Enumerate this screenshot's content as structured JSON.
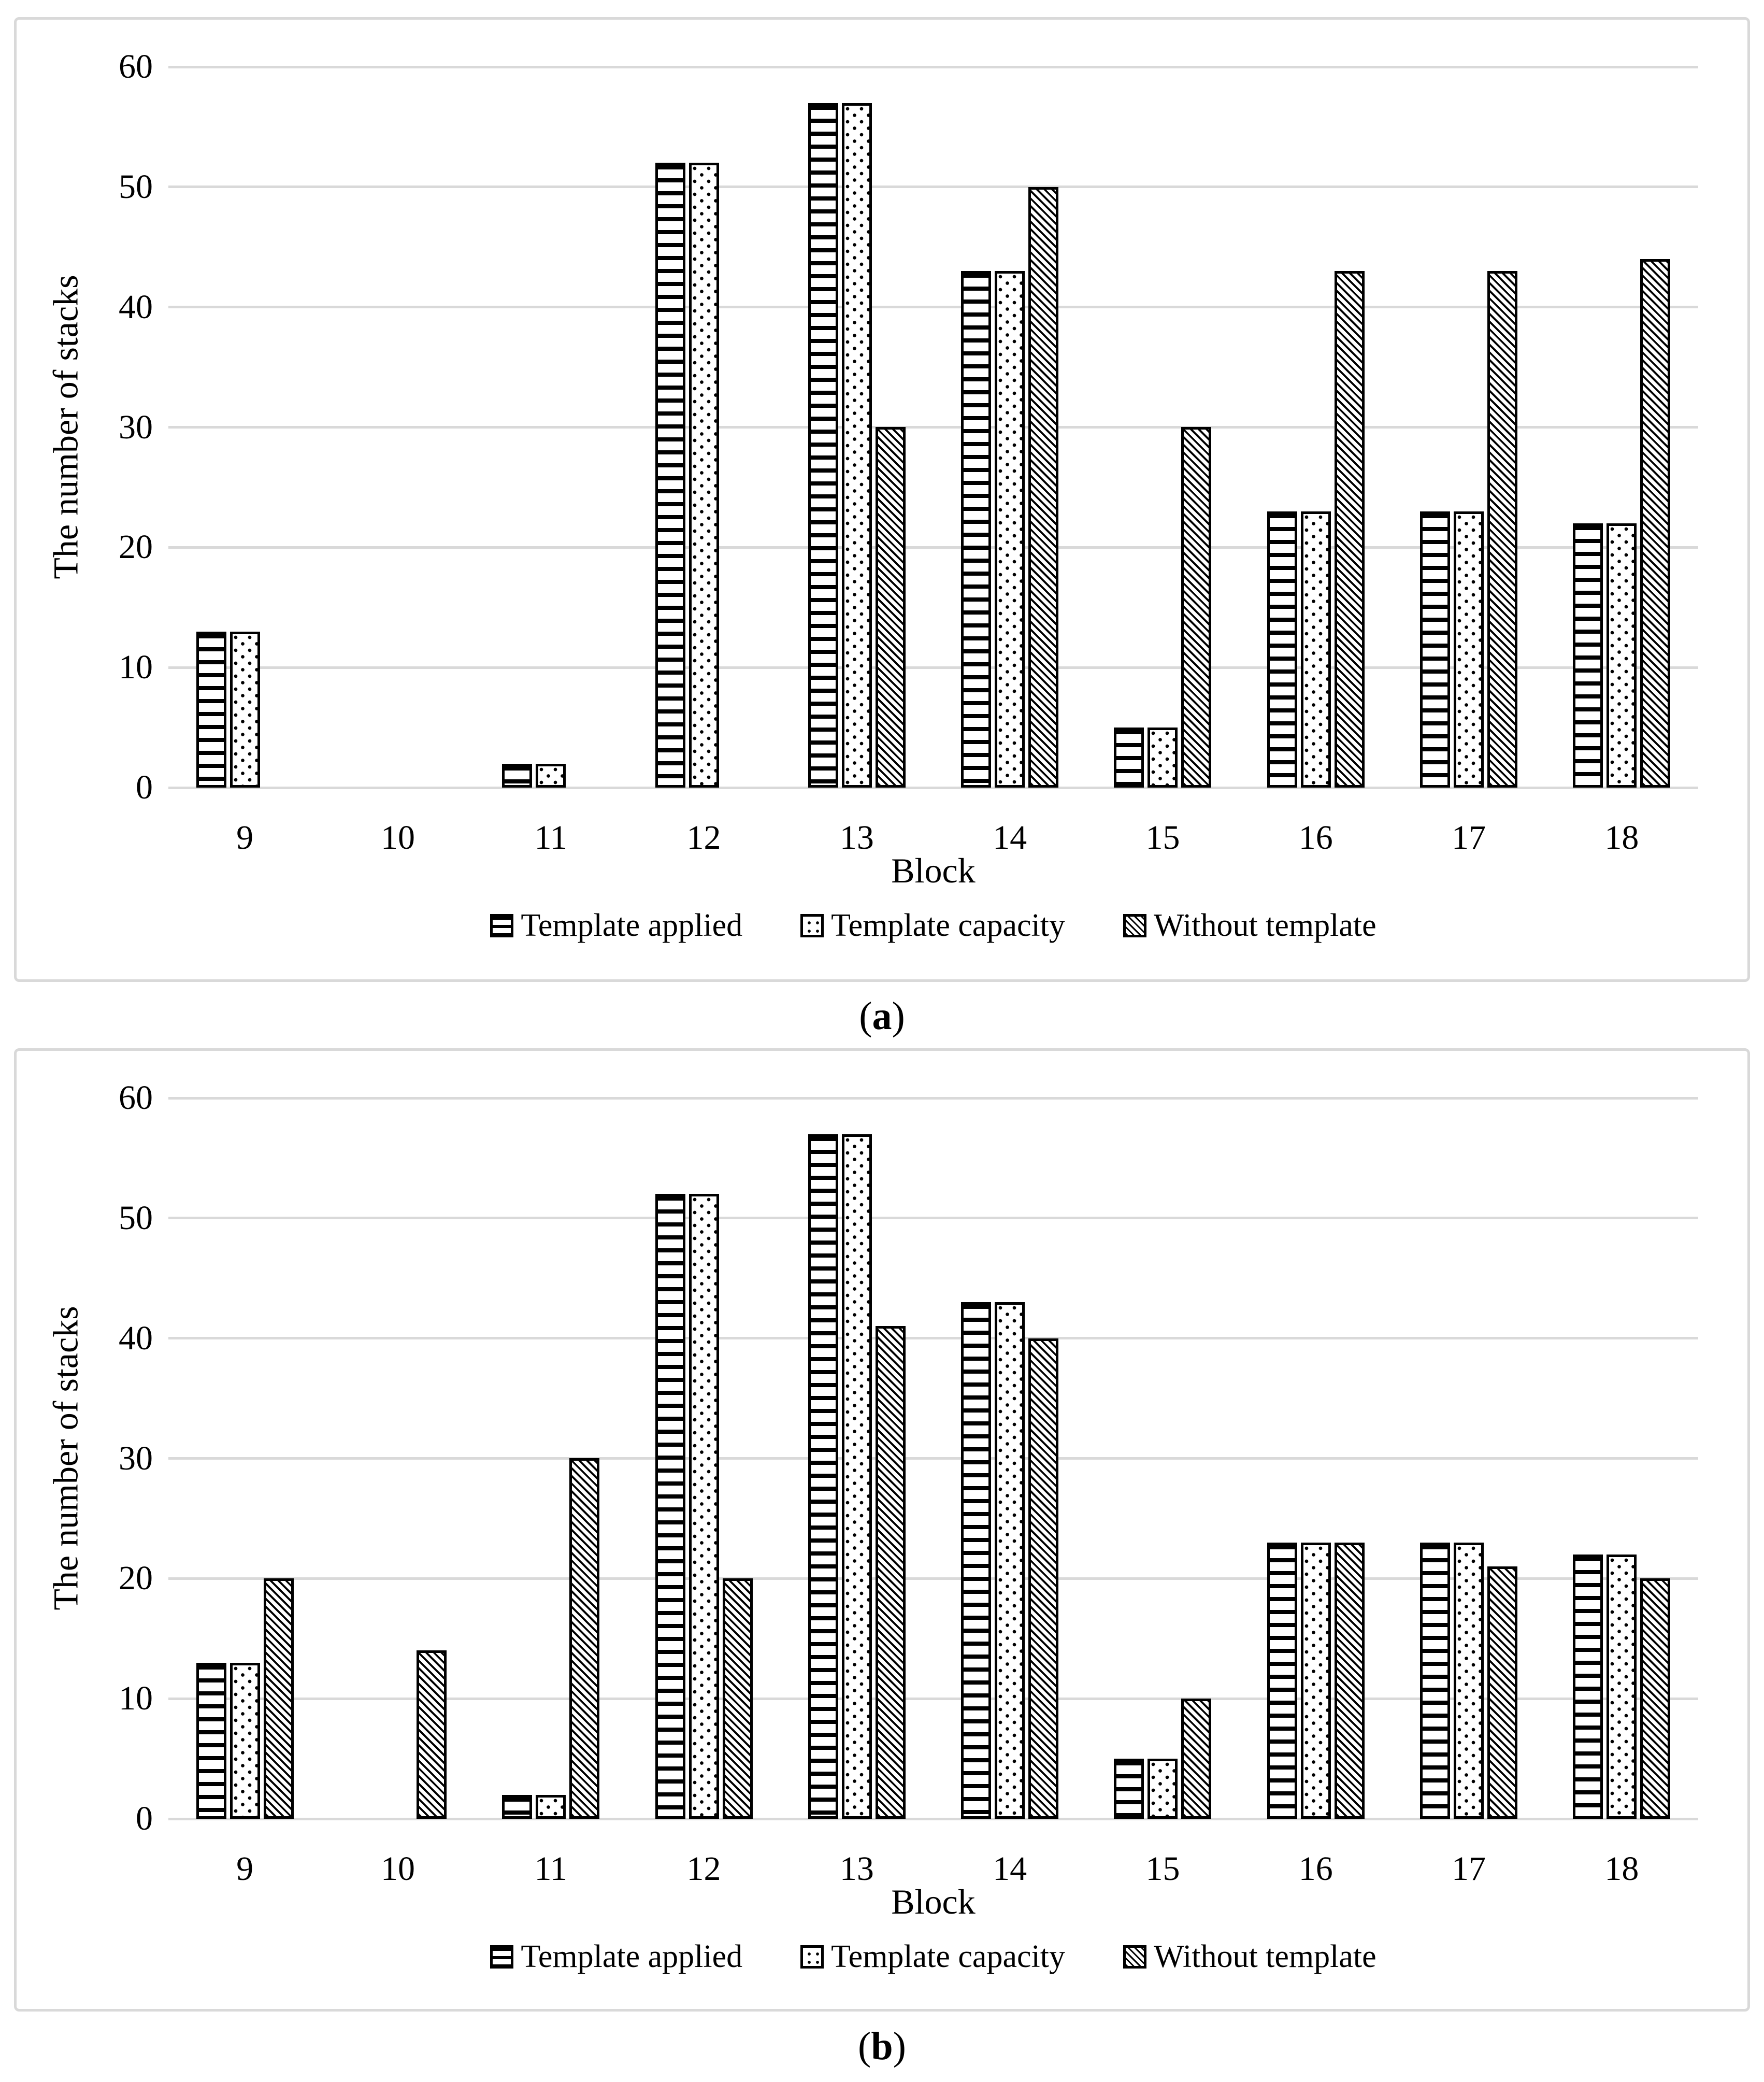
{
  "colors": {
    "bar_stroke": "#000000",
    "bar_fill": "#ffffff",
    "gridline": "#d9d9d9",
    "panel_border": "#d9d9d9",
    "text": "#000000"
  },
  "legend": {
    "icons": [
      "hlines-swatch-icon",
      "dots-swatch-icon",
      "diagonal-swatch-icon"
    ]
  },
  "chart_data": [
    {
      "type": "bar",
      "caption_open": "(",
      "caption_letter": "a",
      "caption_close": ")",
      "xlabel": "Block",
      "ylabel": "The number of stacks",
      "categories": [
        "9",
        "10",
        "11",
        "12",
        "13",
        "14",
        "15",
        "16",
        "17",
        "18"
      ],
      "ylim": [
        0,
        60
      ],
      "yticks": [
        0,
        10,
        20,
        30,
        40,
        50,
        60
      ],
      "grid": true,
      "legend_position": "bottom",
      "series": [
        {
          "name": "Template applied",
          "pattern": "hlines",
          "values": [
            13,
            0,
            2,
            52,
            57,
            43,
            5,
            23,
            23,
            22
          ]
        },
        {
          "name": "Template capacity",
          "pattern": "dots",
          "values": [
            13,
            0,
            2,
            52,
            57,
            43,
            5,
            23,
            23,
            22
          ]
        },
        {
          "name": "Without template",
          "pattern": "diag",
          "values": [
            0,
            0,
            0,
            0,
            30,
            50,
            30,
            43,
            43,
            44
          ]
        }
      ]
    },
    {
      "type": "bar",
      "caption_open": "(",
      "caption_letter": "b",
      "caption_close": ")",
      "xlabel": "Block",
      "ylabel": "The number of stacks",
      "categories": [
        "9",
        "10",
        "11",
        "12",
        "13",
        "14",
        "15",
        "16",
        "17",
        "18"
      ],
      "ylim": [
        0,
        60
      ],
      "yticks": [
        0,
        10,
        20,
        30,
        40,
        50,
        60
      ],
      "grid": true,
      "legend_position": "bottom",
      "series": [
        {
          "name": "Template applied",
          "pattern": "hlines",
          "values": [
            13,
            0,
            2,
            52,
            57,
            43,
            5,
            23,
            23,
            22
          ]
        },
        {
          "name": "Template capacity",
          "pattern": "dots",
          "values": [
            13,
            0,
            2,
            52,
            57,
            43,
            5,
            23,
            23,
            22
          ]
        },
        {
          "name": "Without template",
          "pattern": "diag",
          "values": [
            20,
            14,
            30,
            20,
            41,
            40,
            10,
            23,
            21,
            20
          ]
        }
      ]
    }
  ]
}
